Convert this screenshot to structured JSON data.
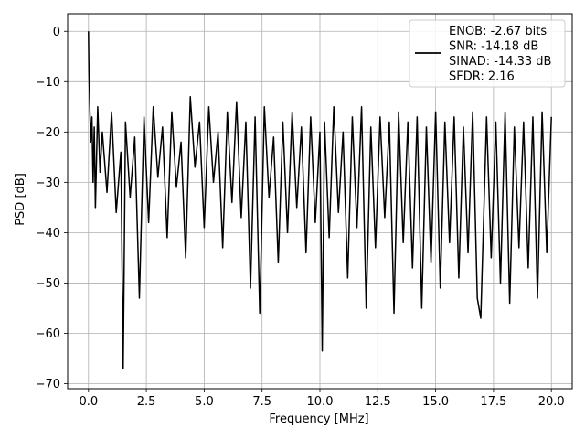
{
  "chart_data": {
    "type": "line",
    "title": "",
    "xlabel": "Frequency [MHz]",
    "ylabel": "PSD [dB]",
    "xlim": [
      -0.9,
      20.9
    ],
    "ylim": [
      -71,
      3.5
    ],
    "grid": true,
    "legend_position": "top-right",
    "x_ticks": [
      0.0,
      2.5,
      5.0,
      7.5,
      10.0,
      12.5,
      15.0,
      17.5,
      20.0
    ],
    "x_tick_labels": [
      "0.0",
      "2.5",
      "5.0",
      "7.5",
      "10.0",
      "12.5",
      "15.0",
      "17.5",
      "20.0"
    ],
    "y_ticks": [
      0,
      -10,
      -20,
      -30,
      -40,
      -50,
      -60,
      -70
    ],
    "y_tick_labels": [
      "0",
      "−10",
      "−20",
      "−30",
      "−40",
      "−50",
      "−60",
      "−70"
    ],
    "legend_lines": [
      "ENOB: -2.67 bits",
      "SNR: -14.18 dB",
      "SINAD: -14.33 dB",
      "SFDR: 2.16"
    ],
    "series": [
      {
        "color": "#000000",
        "x": [
          0.0,
          0.02,
          0.05,
          0.1,
          0.15,
          0.2,
          0.25,
          0.3,
          0.4,
          0.5,
          0.6,
          0.8,
          1.0,
          1.2,
          1.4,
          1.5,
          1.6,
          1.8,
          2.0,
          2.2,
          2.4,
          2.6,
          2.8,
          3.0,
          3.2,
          3.4,
          3.6,
          3.8,
          4.0,
          4.2,
          4.4,
          4.6,
          4.8,
          5.0,
          5.2,
          5.4,
          5.6,
          5.8,
          6.0,
          6.2,
          6.4,
          6.6,
          6.8,
          7.0,
          7.2,
          7.4,
          7.6,
          7.8,
          8.0,
          8.2,
          8.4,
          8.6,
          8.8,
          9.0,
          9.2,
          9.4,
          9.6,
          9.8,
          10.0,
          10.1,
          10.2,
          10.4,
          10.6,
          10.8,
          11.0,
          11.2,
          11.4,
          11.6,
          11.8,
          12.0,
          12.2,
          12.4,
          12.6,
          12.8,
          13.0,
          13.2,
          13.4,
          13.6,
          13.8,
          14.0,
          14.2,
          14.4,
          14.6,
          14.8,
          15.0,
          15.2,
          15.4,
          15.6,
          15.8,
          16.0,
          16.2,
          16.4,
          16.6,
          16.8,
          16.95,
          17.2,
          17.4,
          17.6,
          17.8,
          18.0,
          18.2,
          18.4,
          18.6,
          18.8,
          19.0,
          19.2,
          19.4,
          19.6,
          19.8,
          20.0
        ],
        "y": [
          0.0,
          -8,
          -14,
          -22,
          -17,
          -30,
          -19,
          -35,
          -15,
          -28,
          -20,
          -32,
          -16,
          -36,
          -24,
          -67,
          -18,
          -33,
          -21,
          -53,
          -17,
          -38,
          -15,
          -29,
          -19,
          -41,
          -16,
          -31,
          -22,
          -45,
          -13,
          -27,
          -18,
          -39,
          -15,
          -30,
          -20,
          -43,
          -16,
          -34,
          -14,
          -37,
          -18,
          -51,
          -17,
          -56,
          -15,
          -33,
          -21,
          -46,
          -18,
          -40,
          -16,
          -35,
          -19,
          -44,
          -17,
          -38,
          -20,
          -63.5,
          -18,
          -41,
          -15,
          -36,
          -20,
          -49,
          -17,
          -39,
          -15,
          -55,
          -19,
          -43,
          -17,
          -37,
          -18,
          -56,
          -16,
          -42,
          -18,
          -47,
          -17,
          -55,
          -19,
          -46,
          -16,
          -51,
          -18,
          -42,
          -17,
          -49,
          -19,
          -44,
          -16,
          -53,
          -57,
          -17,
          -45,
          -18,
          -50,
          -16,
          -54,
          -19,
          -43,
          -18,
          -47,
          -17,
          -53,
          -16,
          -44,
          -17
        ]
      }
    ]
  }
}
